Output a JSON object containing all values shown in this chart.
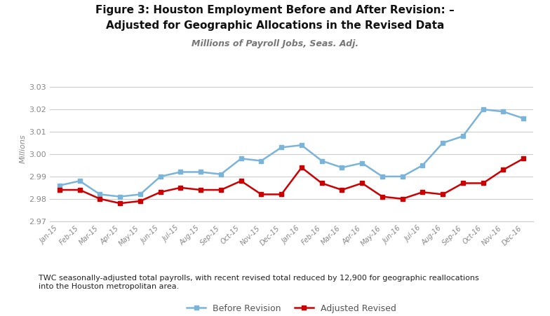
{
  "title_line1": "Figure 3: Houston Employment Before and After Revision: –",
  "title_line2": "Adjusted for Geographic Allocations in the Revised Data",
  "subtitle": "Millions of Payroll Jobs, Seas. Adj.",
  "ylabel": "Millions",
  "footnote": "TWC seasonally-adjusted total payrolls, with recent revised total reduced by 12,900 for geographic reallocations\ninto the Houston metropolitan area.",
  "x_labels": [
    "Jan-15",
    "Feb-15",
    "Mar-15",
    "Apr-15",
    "May-15",
    "Jun-15",
    "Jul-15",
    "Aug-15",
    "Sep-15",
    "Oct-15",
    "Nov-15",
    "Dec-15",
    "Jan-16",
    "Feb-16",
    "Mar-16",
    "Apr-16",
    "May-16",
    "Jun-16",
    "Jul-16",
    "Aug-16",
    "Sep-16",
    "Oct-16",
    "Nov-16",
    "Dec-16"
  ],
  "before_revision": [
    2.986,
    2.988,
    2.982,
    2.981,
    2.982,
    2.99,
    2.992,
    2.992,
    2.991,
    2.998,
    2.997,
    3.003,
    3.004,
    2.997,
    2.994,
    2.996,
    2.99,
    2.99,
    2.995,
    3.005,
    3.008,
    3.02,
    3.019,
    3.016
  ],
  "adjusted_revised": [
    2.984,
    2.984,
    2.98,
    2.978,
    2.979,
    2.983,
    2.985,
    2.984,
    2.984,
    2.988,
    2.982,
    2.982,
    2.994,
    2.987,
    2.984,
    2.987,
    2.981,
    2.98,
    2.983,
    2.982,
    2.987,
    2.987,
    2.993,
    2.998
  ],
  "before_color": "#7AB4D8",
  "adjusted_color": "#CC0000",
  "ylim": [
    2.97,
    3.035
  ],
  "yticks": [
    2.97,
    2.98,
    2.99,
    3.0,
    3.01,
    3.02,
    3.03
  ],
  "legend_labels": [
    "Before Revision",
    "Adjusted Revised"
  ],
  "background_color": "#ffffff",
  "grid_color": "#cccccc"
}
